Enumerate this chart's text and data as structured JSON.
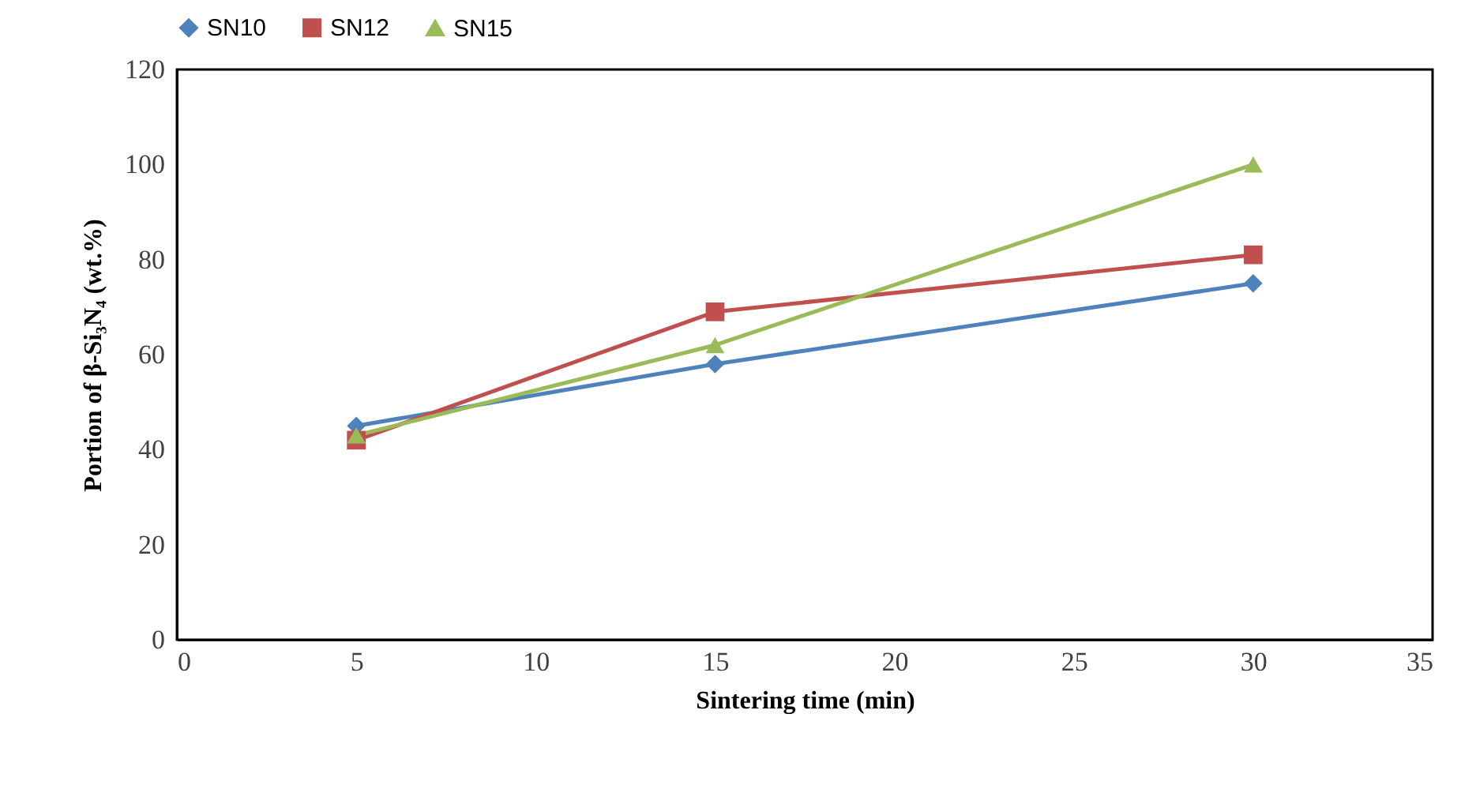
{
  "chart_data": {
    "type": "line",
    "xlabel": "Sintering time (min)",
    "ylabel": "Portion of β-Si₃N₄ (wt.%)",
    "x": [
      5,
      15,
      30
    ],
    "series": [
      {
        "name": "SN10",
        "color": "#4f81bd",
        "marker": "diamond",
        "values": [
          45,
          58,
          75
        ]
      },
      {
        "name": "SN12",
        "color": "#c0504d",
        "marker": "square",
        "values": [
          42,
          69,
          81
        ]
      },
      {
        "name": "SN15",
        "color": "#9bbb59",
        "marker": "triangle",
        "values": [
          43,
          62,
          100
        ]
      }
    ],
    "xlim": [
      0,
      35
    ],
    "xticks": [
      0,
      5,
      10,
      15,
      20,
      25,
      30,
      35
    ],
    "ylim": [
      0,
      120
    ],
    "yticks": [
      0,
      20,
      40,
      60,
      80,
      100,
      120
    ],
    "grid": false,
    "legend": "top",
    "line_style": "solid"
  }
}
